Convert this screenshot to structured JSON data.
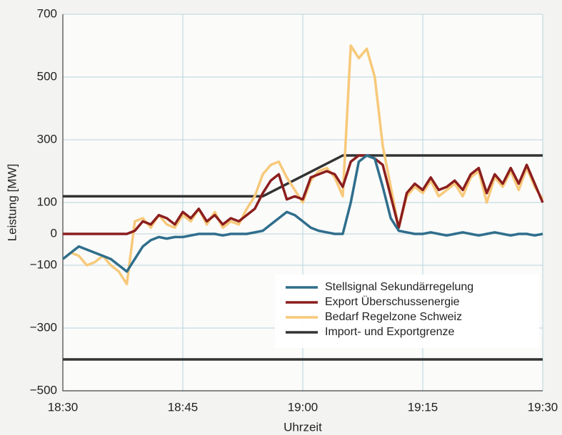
{
  "chart_data": {
    "type": "line",
    "x_label": "Uhrzeit",
    "y_label": "Leistung [MW]",
    "x": [
      "18:30",
      "18:31",
      "18:32",
      "18:33",
      "18:34",
      "18:35",
      "18:36",
      "18:37",
      "18:38",
      "18:39",
      "18:40",
      "18:41",
      "18:42",
      "18:43",
      "18:44",
      "18:45",
      "18:46",
      "18:47",
      "18:48",
      "18:49",
      "18:50",
      "18:51",
      "18:52",
      "18:53",
      "18:54",
      "18:55",
      "18:56",
      "18:57",
      "18:58",
      "18:59",
      "19:00",
      "19:01",
      "19:02",
      "19:03",
      "19:04",
      "19:05",
      "19:06",
      "19:07",
      "19:08",
      "19:09",
      "19:10",
      "19:11",
      "19:12",
      "19:13",
      "19:14",
      "19:15",
      "19:16",
      "19:17",
      "19:18",
      "19:19",
      "19:20",
      "19:21",
      "19:22",
      "19:23",
      "19:24",
      "19:25",
      "19:26",
      "19:27",
      "19:28",
      "19:29",
      "19:30"
    ],
    "xlim": [
      "18:30",
      "19:30"
    ],
    "xticks": [
      "18:30",
      "18:45",
      "19:00",
      "19:15",
      "19:30"
    ],
    "ylim": [
      -500,
      700
    ],
    "yticks": [
      {
        "value": -500,
        "label": "−500"
      },
      {
        "value": -300,
        "label": "−300"
      },
      {
        "value": -100,
        "label": "−100"
      },
      0,
      100,
      300,
      500,
      700
    ],
    "grid": true,
    "legend": "lower right",
    "series": [
      {
        "name": "Stellsignal Sekundärregelung",
        "color": "#2f6e8c",
        "values": [
          -80,
          -60,
          -40,
          -50,
          -60,
          -70,
          -80,
          -100,
          -120,
          -80,
          -40,
          -20,
          -10,
          -15,
          -10,
          -10,
          -5,
          0,
          0,
          0,
          -5,
          0,
          0,
          0,
          5,
          10,
          30,
          50,
          70,
          60,
          40,
          20,
          10,
          5,
          0,
          0,
          100,
          230,
          250,
          240,
          150,
          50,
          10,
          5,
          0,
          0,
          5,
          0,
          -5,
          0,
          5,
          0,
          -5,
          0,
          5,
          0,
          -5,
          0,
          0,
          -5,
          0
        ]
      },
      {
        "name": "Export Überschussenergie",
        "color": "#8b1e1e",
        "values": [
          0,
          0,
          0,
          0,
          0,
          0,
          0,
          0,
          0,
          10,
          40,
          30,
          60,
          50,
          30,
          70,
          50,
          80,
          40,
          60,
          30,
          50,
          40,
          60,
          80,
          130,
          170,
          190,
          110,
          120,
          110,
          180,
          190,
          200,
          190,
          150,
          230,
          250,
          250,
          240,
          220,
          120,
          20,
          130,
          160,
          140,
          180,
          140,
          150,
          170,
          140,
          190,
          210,
          130,
          190,
          160,
          210,
          160,
          220,
          160,
          100
        ]
      },
      {
        "name": "Bedarf Regelzone Schweiz",
        "color": "#f7c97a",
        "values": [
          -80,
          -60,
          -70,
          -100,
          -90,
          -70,
          -100,
          -120,
          -160,
          40,
          50,
          20,
          60,
          30,
          20,
          60,
          40,
          80,
          30,
          70,
          20,
          40,
          30,
          80,
          120,
          190,
          220,
          230,
          180,
          140,
          100,
          170,
          200,
          210,
          180,
          120,
          600,
          560,
          590,
          500,
          280,
          150,
          20,
          120,
          150,
          130,
          170,
          120,
          140,
          160,
          120,
          180,
          200,
          100,
          180,
          150,
          200,
          140,
          210,
          150,
          110
        ]
      },
      {
        "name": "Import- und Exportgrenze",
        "color": "#333333",
        "x": [
          "18:30",
          "18:55",
          "19:05",
          "19:30",
          null,
          "18:30",
          "19:30"
        ],
        "values": [
          120,
          120,
          250,
          250,
          null,
          -400,
          -400
        ]
      }
    ]
  }
}
